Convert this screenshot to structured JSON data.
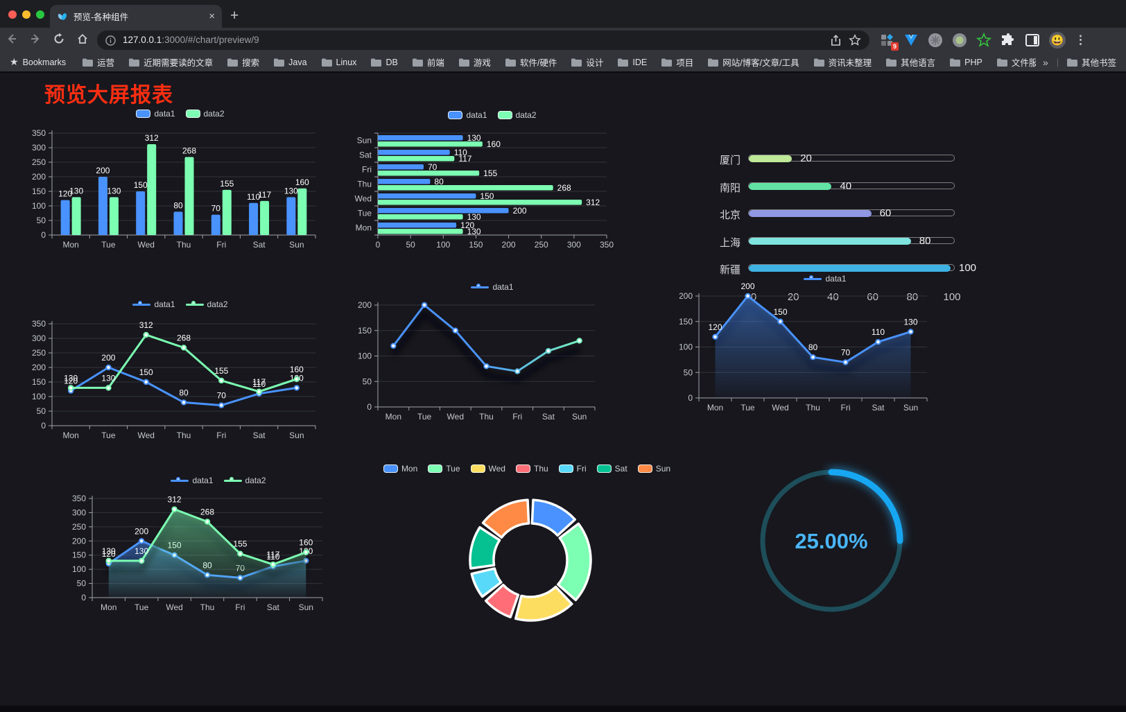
{
  "browser": {
    "tab_title": "预览-各种组件",
    "url_host": "127.0.0.1",
    "url_rest": ":3000/#/chart/preview/9",
    "bookmarks_title": "Bookmarks",
    "bookmarks": [
      "运营",
      "近期需要读的文章",
      "搜索",
      "Java",
      "Linux",
      "DB",
      "前端",
      "游戏",
      "软件/硬件",
      "设计",
      "IDE",
      "项目",
      "网站/博客/文章/工具",
      "资讯未整理",
      "其他语言",
      "PHP",
      "文件服务器"
    ],
    "overflow_chevron": "»",
    "other_bookmarks": "其他书签",
    "extension_badge": "9",
    "avatar_emoji": "😃",
    "new_tab_plus": "+",
    "close_glyph": "×",
    "menu_glyph": "⋮"
  },
  "page": {
    "title": "预览大屏报表",
    "title_color": "#fb2e12",
    "background": "#17171d"
  },
  "chart_data": [
    {
      "id": "bar-grouped",
      "type": "bar",
      "categories": [
        "Mon",
        "Tue",
        "Wed",
        "Thu",
        "Fri",
        "Sat",
        "Sun"
      ],
      "series": [
        {
          "name": "data1",
          "color": "#4992ff",
          "values": [
            120,
            200,
            150,
            80,
            70,
            110,
            130
          ]
        },
        {
          "name": "data2",
          "color": "#7cffb2",
          "values": [
            130,
            130,
            312,
            268,
            155,
            117,
            160
          ]
        }
      ],
      "ylim": [
        0,
        350
      ],
      "yticks": [
        0,
        50,
        100,
        150,
        200,
        250,
        300,
        350
      ],
      "grid": true,
      "legend_position": "top",
      "value_labels": true
    },
    {
      "id": "bar-horizontal",
      "type": "bar",
      "orientation": "horizontal",
      "categories": [
        "Mon",
        "Tue",
        "Wed",
        "Thu",
        "Fri",
        "Sat",
        "Sun"
      ],
      "series": [
        {
          "name": "data1",
          "color": "#4992ff",
          "values": [
            120,
            200,
            150,
            80,
            70,
            110,
            130
          ]
        },
        {
          "name": "data2",
          "color": "#7cffb2",
          "values": [
            130,
            130,
            312,
            268,
            155,
            117,
            160
          ]
        }
      ],
      "xlim": [
        0,
        350
      ],
      "xticks": [
        0,
        50,
        100,
        150,
        200,
        250,
        300,
        350
      ],
      "grid": true,
      "legend_position": "top",
      "value_labels": true
    },
    {
      "id": "progress-bars",
      "type": "bar",
      "subtype": "progress",
      "xlim": [
        0,
        100
      ],
      "xticks": [
        0,
        20,
        40,
        60,
        80,
        100
      ],
      "rows": [
        {
          "label": "厦门",
          "value": 20,
          "color": "#bfe897"
        },
        {
          "label": "南阳",
          "value": 40,
          "color": "#61e2a4"
        },
        {
          "label": "北京",
          "value": 60,
          "color": "#9097e4"
        },
        {
          "label": "上海",
          "value": 80,
          "color": "#7fe4df"
        },
        {
          "label": "新疆",
          "value": 100,
          "color": "#3eb2e2"
        }
      ]
    },
    {
      "id": "line-two-series",
      "type": "line",
      "categories": [
        "Mon",
        "Tue",
        "Wed",
        "Thu",
        "Fri",
        "Sat",
        "Sun"
      ],
      "series": [
        {
          "name": "data1",
          "color": "#4992ff",
          "values": [
            120,
            200,
            150,
            80,
            70,
            110,
            130
          ]
        },
        {
          "name": "data2",
          "color": "#7cffb2",
          "values": [
            130,
            130,
            312,
            268,
            155,
            117,
            160
          ]
        }
      ],
      "ylim": [
        0,
        350
      ],
      "yticks": [
        0,
        50,
        100,
        150,
        200,
        250,
        300,
        350
      ],
      "grid": true,
      "legend_position": "top",
      "value_labels": true,
      "markers": true
    },
    {
      "id": "line-gradient",
      "type": "line",
      "categories": [
        "Mon",
        "Tue",
        "Wed",
        "Thu",
        "Fri",
        "Sat",
        "Sun"
      ],
      "series": [
        {
          "name": "data1",
          "color": "#4992ff",
          "color_end": "#7cffb2",
          "values": [
            120,
            200,
            150,
            80,
            70,
            110,
            130
          ]
        }
      ],
      "ylim": [
        0,
        200
      ],
      "yticks": [
        0,
        50,
        100,
        150,
        200
      ],
      "grid": true,
      "legend_position": "top",
      "value_labels": false,
      "markers": true,
      "shadow": true
    },
    {
      "id": "area-single",
      "type": "area",
      "categories": [
        "Mon",
        "Tue",
        "Wed",
        "Thu",
        "Fri",
        "Sat",
        "Sun"
      ],
      "series": [
        {
          "name": "data1",
          "color": "#4992ff",
          "values": [
            120,
            200,
            150,
            80,
            70,
            110,
            130
          ]
        }
      ],
      "ylim": [
        0,
        200
      ],
      "yticks": [
        0,
        50,
        100,
        150,
        200
      ],
      "grid": true,
      "legend_position": "top",
      "value_labels": true,
      "markers": true,
      "shadow": true
    },
    {
      "id": "area-two-series",
      "type": "area",
      "categories": [
        "Mon",
        "Tue",
        "Wed",
        "Thu",
        "Fri",
        "Sat",
        "Sun"
      ],
      "series": [
        {
          "name": "data1",
          "color": "#4992ff",
          "values": [
            120,
            200,
            150,
            80,
            70,
            110,
            130
          ]
        },
        {
          "name": "data2",
          "color": "#7cffb2",
          "values": [
            130,
            130,
            312,
            268,
            155,
            117,
            160
          ]
        }
      ],
      "ylim": [
        0,
        350
      ],
      "yticks": [
        0,
        50,
        100,
        150,
        200,
        250,
        300,
        350
      ],
      "grid": true,
      "legend_position": "top",
      "value_labels": true,
      "markers": true,
      "shadow": true
    },
    {
      "id": "donut",
      "type": "pie",
      "labels": [
        "Mon",
        "Tue",
        "Wed",
        "Thu",
        "Fri",
        "Sat",
        "Sun"
      ],
      "values": [
        120,
        200,
        150,
        80,
        70,
        110,
        130
      ],
      "colors": [
        "#4992ff",
        "#7cffb2",
        "#fddd60",
        "#ff6e76",
        "#58d9f9",
        "#05c091",
        "#ff8a45"
      ],
      "legend_position": "top"
    },
    {
      "id": "gauge",
      "type": "gauge",
      "percent": 25,
      "display": "25.00%",
      "arc_color": "#17a7f2",
      "track_color": "#1d4e5a",
      "text_color": "#4ab5f7"
    }
  ]
}
